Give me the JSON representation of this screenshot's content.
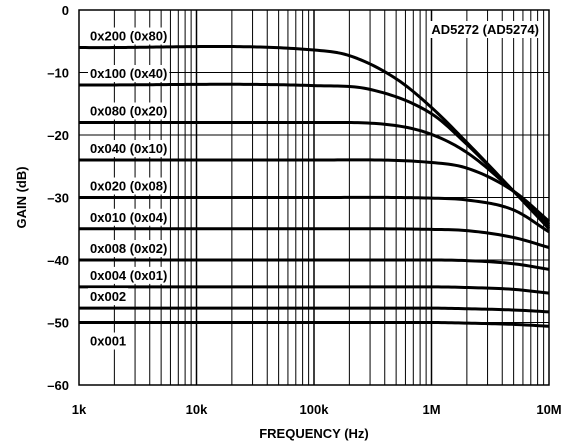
{
  "chart_data": {
    "type": "line",
    "title": "",
    "xlabel": "FREQUENCY (Hz)",
    "ylabel": "GAIN (dB)",
    "x_scale": "log",
    "xlim": [
      1000,
      10000000
    ],
    "ylim": [
      -60,
      0
    ],
    "x_tick_labels": [
      "1k",
      "10k",
      "100k",
      "1M",
      "10M"
    ],
    "x_tick_values": [
      1000,
      10000,
      100000,
      1000000,
      10000000
    ],
    "y_tick_labels": [
      "0",
      "–10",
      "–20",
      "–30",
      "–40",
      "–50",
      "–60"
    ],
    "y_tick_values": [
      0,
      -10,
      -20,
      -30,
      -40,
      -50,
      -60
    ],
    "grid": true,
    "legend": {
      "text": "AD5272 (AD5274)",
      "position": "top-right"
    },
    "colors": {
      "line": "#000000",
      "grid": "#000000"
    },
    "series": [
      {
        "name": "0x200 (0x80)",
        "x": [
          1000,
          100000,
          200000,
          500000,
          1000000,
          2000000,
          5000000,
          10000000
        ],
        "y": [
          -6.0,
          -6.4,
          -7.3,
          -11.0,
          -15.6,
          -21.2,
          -29.0,
          -35.0
        ]
      },
      {
        "name": "0x100 (0x40)",
        "x": [
          1000,
          100000,
          300000,
          1000000,
          2000000,
          5000000,
          10000000
        ],
        "y": [
          -12.0,
          -12.1,
          -12.7,
          -16.6,
          -21.5,
          -29.0,
          -34.7
        ]
      },
      {
        "name": "0x080 (0x20)",
        "x": [
          1000,
          100000,
          500000,
          1000000,
          2000000,
          5000000,
          10000000
        ],
        "y": [
          -18.0,
          -18.0,
          -18.5,
          -19.9,
          -22.8,
          -29.0,
          -34.3
        ]
      },
      {
        "name": "0x040 (0x10)",
        "x": [
          1000,
          100000,
          1000000,
          2000000,
          5000000,
          10000000
        ],
        "y": [
          -24.0,
          -24.0,
          -24.4,
          -25.3,
          -29.0,
          -33.8
        ]
      },
      {
        "name": "0x020 (0x08)",
        "x": [
          1000,
          100000,
          1000000,
          2000000,
          5000000,
          10000000
        ],
        "y": [
          -30.0,
          -30.0,
          -30.1,
          -30.4,
          -32.0,
          -35.5
        ]
      },
      {
        "name": "0x010 (0x04)",
        "x": [
          1000,
          100000,
          1000000,
          2000000,
          5000000,
          10000000
        ],
        "y": [
          -35.0,
          -35.0,
          -35.1,
          -35.3,
          -36.4,
          -38.0
        ]
      },
      {
        "name": "0x008 (0x02)",
        "x": [
          1000,
          100000,
          1000000,
          2000000,
          5000000,
          10000000
        ],
        "y": [
          -40.0,
          -40.0,
          -40.0,
          -40.1,
          -40.6,
          -41.5
        ]
      },
      {
        "name": "0x004 (0x01)",
        "x": [
          1000,
          100000,
          1000000,
          2000000,
          5000000,
          10000000
        ],
        "y": [
          -44.3,
          -44.3,
          -44.3,
          -44.4,
          -44.7,
          -45.3
        ]
      },
      {
        "name": "0x002",
        "x": [
          1000,
          100000,
          1000000,
          2000000,
          5000000,
          10000000
        ],
        "y": [
          -47.7,
          -47.7,
          -47.7,
          -47.8,
          -48.0,
          -48.3
        ]
      },
      {
        "name": "0x001",
        "x": [
          1000,
          100000,
          1000000,
          2000000,
          5000000,
          10000000
        ],
        "y": [
          -50.0,
          -50.0,
          -50.0,
          -50.1,
          -50.3,
          -50.6
        ]
      }
    ]
  }
}
